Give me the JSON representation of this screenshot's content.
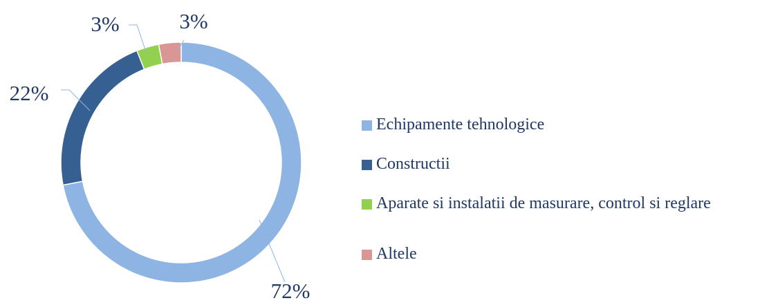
{
  "chart_data": {
    "type": "donut",
    "categories": [
      "Echipamente tehnologice",
      "Constructii",
      "Aparate si instalatii de masurare, control si reglare",
      "Altele"
    ],
    "values": [
      72,
      22,
      3,
      3
    ],
    "value_labels": [
      "72%",
      "22%",
      "3%",
      "3%"
    ],
    "colors": [
      "#8eb4e3",
      "#366092",
      "#92d050",
      "#d99694"
    ],
    "legend": "right"
  }
}
